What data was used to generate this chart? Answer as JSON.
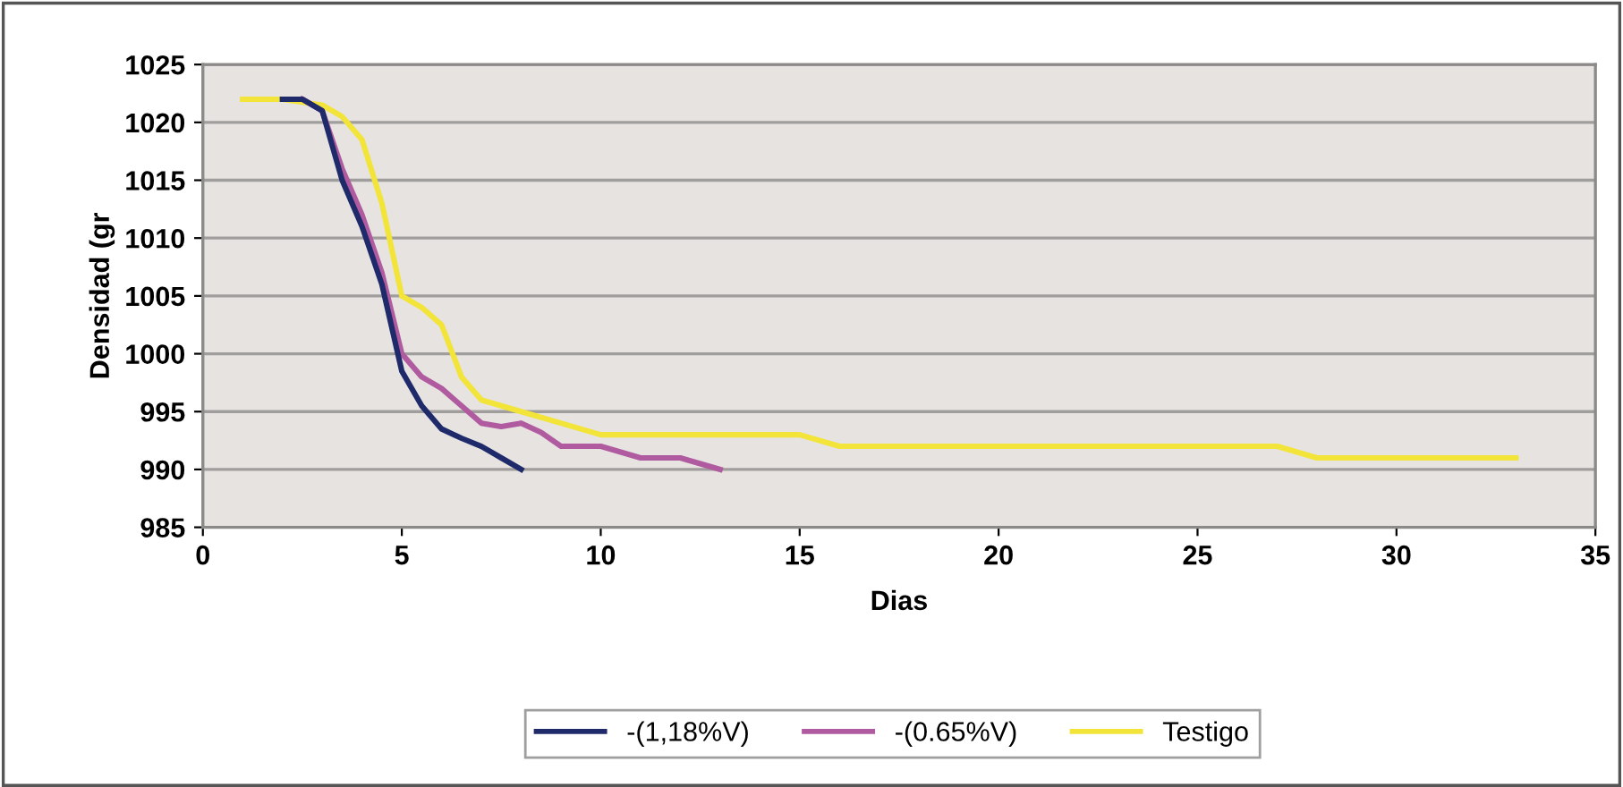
{
  "chart_data": {
    "type": "line",
    "xlabel": "Dias",
    "ylabel": "Densidad (gr",
    "xlim": [
      0,
      35
    ],
    "xticks": [
      0,
      5,
      10,
      15,
      20,
      25,
      30,
      35
    ],
    "ylim": [
      985,
      1025
    ],
    "yticks": [
      985,
      990,
      995,
      1000,
      1005,
      1010,
      1015,
      1020,
      1025
    ],
    "grid": "y",
    "legend": "bottom",
    "marker": "none",
    "line_style": "solid",
    "series": [
      {
        "name": "-(1,18%V)",
        "color": "#1f2a6b",
        "x": [
          2,
          2.5,
          3,
          3.5,
          4,
          4.5,
          5,
          5.5,
          6,
          6.5,
          7,
          7.5,
          8
        ],
        "values": [
          1022,
          1022,
          1021,
          1015,
          1011,
          1006,
          998.5,
          995.5,
          993.5,
          992.7,
          992,
          991,
          990
        ]
      },
      {
        "name": "-(0.65%V)",
        "color": "#b05aa0",
        "x": [
          2.5,
          3,
          3.5,
          4,
          4.5,
          5,
          5.5,
          6,
          6.5,
          7,
          7.5,
          8,
          8.5,
          9,
          10,
          11,
          12,
          13
        ],
        "values": [
          1022,
          1021,
          1016,
          1012,
          1007,
          1000,
          998,
          997,
          995.5,
          994,
          993.7,
          994,
          993.2,
          992,
          992,
          991,
          991,
          990
        ]
      },
      {
        "name": "Testigo",
        "color": "#f2e438",
        "x": [
          1,
          2,
          3,
          3.5,
          4,
          4.5,
          5,
          5.5,
          6,
          6.5,
          7,
          8,
          9,
          10,
          15,
          16,
          27,
          28,
          33
        ],
        "values": [
          1022,
          1022,
          1021.5,
          1020.5,
          1018.5,
          1013,
          1005,
          1004,
          1002.5,
          998,
          996,
          995,
          994,
          993,
          993,
          992,
          992,
          991,
          991
        ]
      }
    ]
  }
}
